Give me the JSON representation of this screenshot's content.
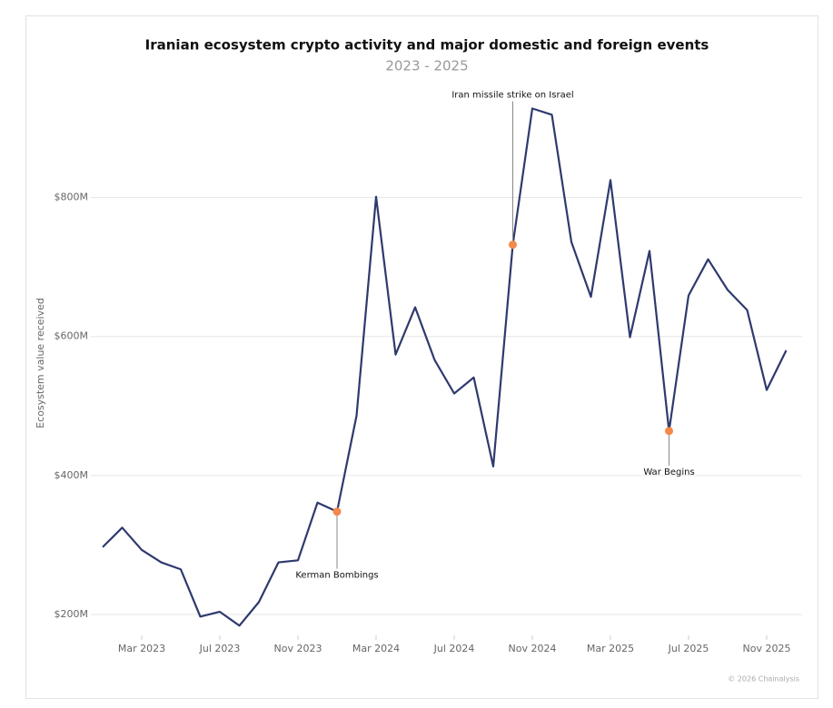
{
  "chart_data": {
    "type": "line",
    "title": "Iranian ecosystem crypto activity and major domestic and foreign events",
    "subtitle": "2023 - 2025",
    "y_label": "Ecosystem value received",
    "source": "© 2026 Chainalysis",
    "x": [
      "2023-01",
      "2023-02",
      "2023-03",
      "2023-04",
      "2023-05",
      "2023-06",
      "2023-07",
      "2023-08",
      "2023-09",
      "2023-10",
      "2023-11",
      "2023-12",
      "2024-01",
      "2024-02",
      "2024-03",
      "2024-04",
      "2024-05",
      "2024-06",
      "2024-07",
      "2024-08",
      "2024-09",
      "2024-10",
      "2024-11",
      "2024-12",
      "2025-01",
      "2025-02",
      "2025-03",
      "2025-04",
      "2025-05",
      "2025-06",
      "2025-07",
      "2025-08",
      "2025-09",
      "2025-10",
      "2025-11",
      "2025-12"
    ],
    "series": [
      {
        "name": "Ecosystem value received",
        "color": "#2e3a6e",
        "values": [
          297,
          325,
          293,
          275,
          265,
          197,
          204,
          184,
          218,
          275,
          278,
          361,
          348,
          486,
          801,
          574,
          642,
          566,
          518,
          541,
          413,
          732,
          928,
          919,
          736,
          657,
          825,
          599,
          723,
          464,
          659,
          711,
          667,
          638,
          523,
          580
        ]
      }
    ],
    "annotations": [
      {
        "text": "Kerman Bombings",
        "index": 12
      },
      {
        "text": "Iran missile strike on Israel",
        "index": 21
      },
      {
        "text": "War Begins",
        "index": 29
      }
    ],
    "marker_color": "#f5894a",
    "xticks": [
      {
        "value": "2023-03",
        "label": "Mar 2023"
      },
      {
        "value": "2023-07",
        "label": "Jul 2023"
      },
      {
        "value": "2023-11",
        "label": "Nov 2023"
      },
      {
        "value": "2024-03",
        "label": "Mar 2024"
      },
      {
        "value": "2024-07",
        "label": "Jul 2024"
      },
      {
        "value": "2024-11",
        "label": "Nov 2024"
      },
      {
        "value": "2025-03",
        "label": "Mar 2025"
      },
      {
        "value": "2025-07",
        "label": "Jul 2025"
      },
      {
        "value": "2025-11",
        "label": "Nov 2025"
      }
    ],
    "ylim": [
      170,
      960
    ],
    "yticks": [
      {
        "value": 200,
        "label": "$200M"
      },
      {
        "value": 400,
        "label": "$400M"
      },
      {
        "value": 600,
        "label": "$600M"
      },
      {
        "value": 800,
        "label": "$800M"
      }
    ],
    "grid": true
  }
}
